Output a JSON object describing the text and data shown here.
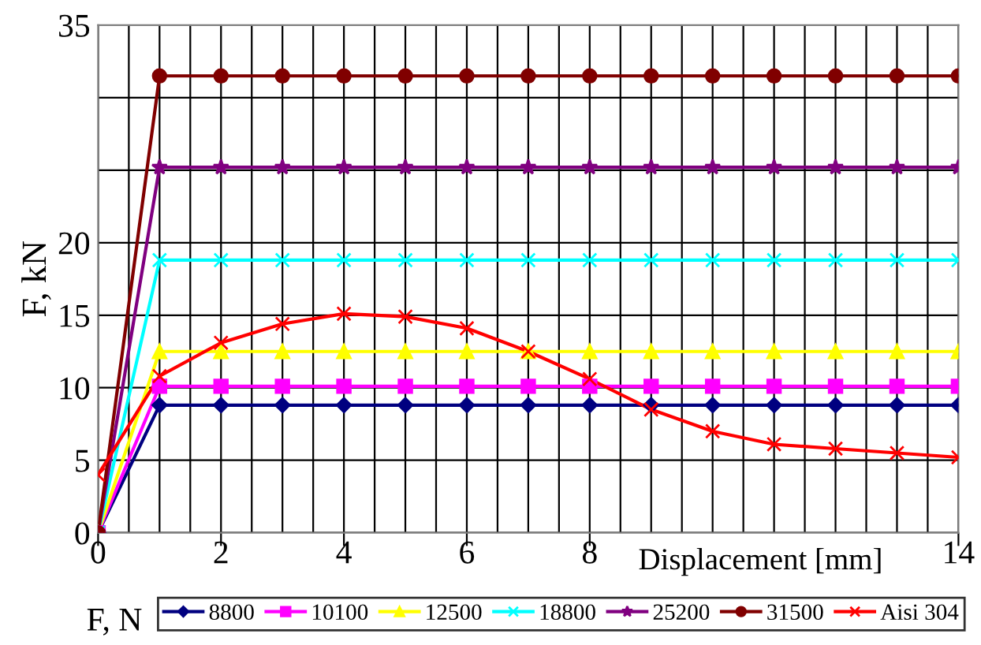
{
  "chart_data": {
    "type": "line",
    "ylabel": "F, kN",
    "xlabel": "Displacement [mm]",
    "legend_title": "F, N",
    "x": [
      0,
      1,
      2,
      3,
      4,
      5,
      6,
      7,
      8,
      9,
      10,
      11,
      12,
      13,
      14
    ],
    "series": [
      {
        "name": "8800",
        "color": "#000080",
        "marker": "diamond",
        "values": [
          0,
          8.8,
          8.8,
          8.8,
          8.8,
          8.8,
          8.8,
          8.8,
          8.8,
          8.8,
          8.8,
          8.8,
          8.8,
          8.8,
          8.8
        ]
      },
      {
        "name": "10100",
        "color": "#ff00ff",
        "marker": "square",
        "values": [
          0,
          10.1,
          10.1,
          10.1,
          10.1,
          10.1,
          10.1,
          10.1,
          10.1,
          10.1,
          10.1,
          10.1,
          10.1,
          10.1,
          10.1
        ]
      },
      {
        "name": "12500",
        "color": "#ffff00",
        "marker": "triangle",
        "values": [
          0,
          12.5,
          12.5,
          12.5,
          12.5,
          12.5,
          12.5,
          12.5,
          12.5,
          12.5,
          12.5,
          12.5,
          12.5,
          12.5,
          12.5
        ]
      },
      {
        "name": "18800",
        "color": "#00ffff",
        "marker": "cross",
        "values": [
          0,
          18.8,
          18.8,
          18.8,
          18.8,
          18.8,
          18.8,
          18.8,
          18.8,
          18.8,
          18.8,
          18.8,
          18.8,
          18.8,
          18.8
        ]
      },
      {
        "name": "25200",
        "color": "#800080",
        "marker": "star",
        "values": [
          0,
          25.2,
          25.2,
          25.2,
          25.2,
          25.2,
          25.2,
          25.2,
          25.2,
          25.2,
          25.2,
          25.2,
          25.2,
          25.2,
          25.2
        ]
      },
      {
        "name": "31500",
        "color": "#800000",
        "marker": "circle",
        "values": [
          0,
          31.5,
          31.5,
          31.5,
          31.5,
          31.5,
          31.5,
          31.5,
          31.5,
          31.5,
          31.5,
          31.5,
          31.5,
          31.5,
          31.5
        ]
      },
      {
        "name": "Aisi 304",
        "color": "#ff0000",
        "marker": "cross",
        "values": [
          4.0,
          10.8,
          13.1,
          14.4,
          15.1,
          14.9,
          14.1,
          12.5,
          10.6,
          8.5,
          7.0,
          6.1,
          5.8,
          5.5,
          5.2
        ]
      }
    ],
    "xlim": [
      0,
      14
    ],
    "xticks": [
      0,
      {
        "value": 0.5,
        "label": null
      },
      {
        "value": 1,
        "label": null
      },
      {
        "value": 1.5,
        "label": null
      },
      2,
      {
        "value": 2.5,
        "label": null
      },
      {
        "value": 3,
        "label": null
      },
      {
        "value": 3.5,
        "label": null
      },
      4,
      {
        "value": 4.5,
        "label": null
      },
      {
        "value": 5,
        "label": null
      },
      {
        "value": 5.5,
        "label": null
      },
      6,
      {
        "value": 6.5,
        "label": null
      },
      {
        "value": 7,
        "label": null
      },
      {
        "value": 7.5,
        "label": null
      },
      8,
      {
        "value": 8.5,
        "label": null
      },
      {
        "value": 9,
        "label": null
      },
      {
        "value": 9.5,
        "label": null
      },
      {
        "value": 10,
        "label": null
      },
      {
        "value": 10.5,
        "label": null
      },
      {
        "value": 11,
        "label": null
      },
      {
        "value": 11.5,
        "label": null
      },
      {
        "value": 12,
        "label": null
      },
      {
        "value": 12.5,
        "label": null
      },
      {
        "value": 13,
        "label": null
      },
      {
        "value": 13.5,
        "label": null
      },
      14
    ],
    "ylim": [
      0,
      35
    ],
    "yticks": [
      0,
      5,
      10,
      15,
      20,
      {
        "value": 25,
        "label": null
      },
      {
        "value": 30,
        "label": null
      },
      35
    ],
    "grid": true,
    "legend": "bottom"
  }
}
